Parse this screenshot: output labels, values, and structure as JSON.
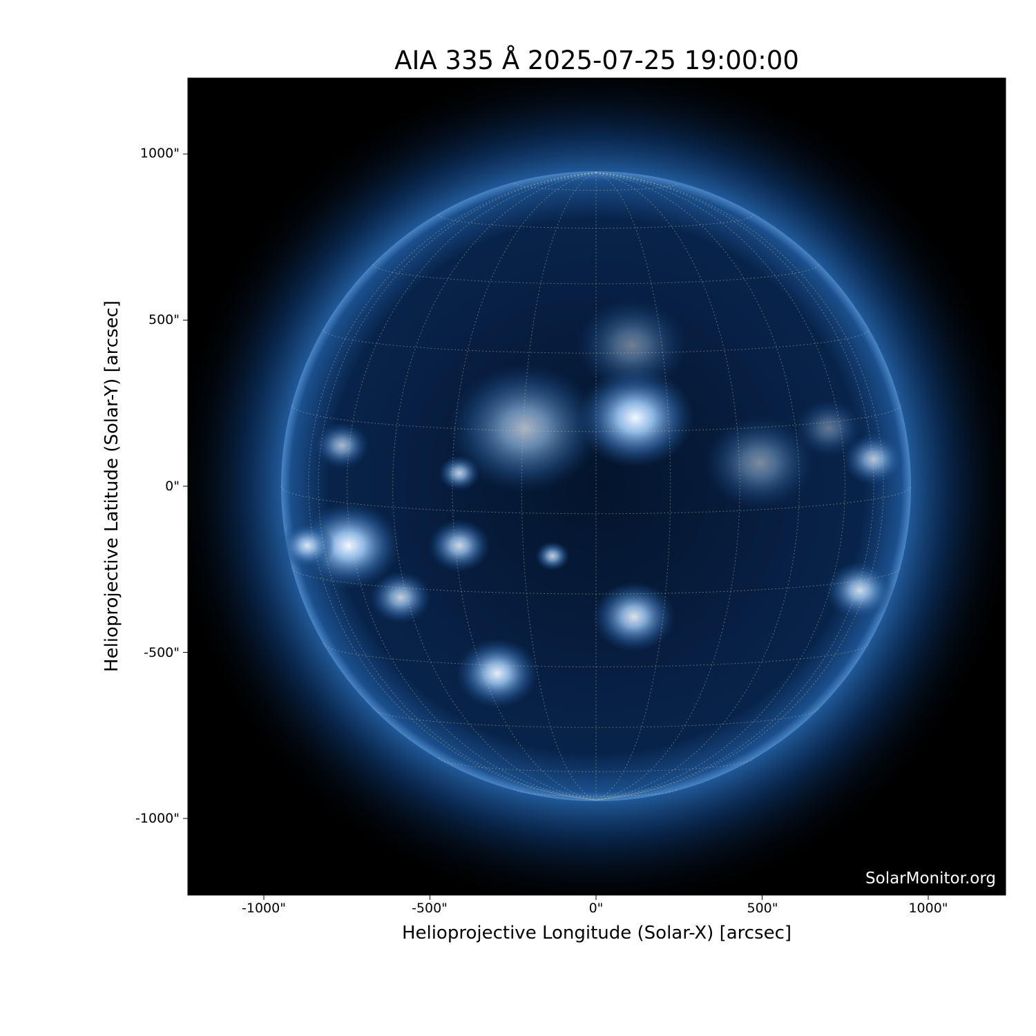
{
  "chart_data": {
    "type": "heatmap",
    "title": "AIA 335 Å 2025-07-25 19:00:00",
    "xlabel": "Helioprojective Longitude (Solar-X) [arcsec]",
    "ylabel": "Helioprojective Latitude (Solar-Y) [arcsec]",
    "xticks": [
      -1000,
      -500,
      0,
      500,
      1000
    ],
    "xtick_labels": [
      "-1000\"",
      "-500\"",
      "0\"",
      "500\"",
      "1000\""
    ],
    "yticks": [
      1000,
      500,
      0,
      -500,
      -1000
    ],
    "ytick_labels": [
      "1000\"",
      "500\"",
      "0\"",
      "-500\"",
      "-1000\""
    ],
    "xlim": [
      -1230,
      1230
    ],
    "ylim": [
      -1230,
      1230
    ],
    "solar_radius_arcsec": 948,
    "grid": true,
    "grid_spacing_deg": 15,
    "colormap": "sdoaia335",
    "colors": {
      "background": "#000000",
      "disk": "#0b2a55",
      "bright": "#e8f2ff",
      "grid": "#c8c8a0"
    }
  },
  "watermark": "SolarMonitor.org"
}
